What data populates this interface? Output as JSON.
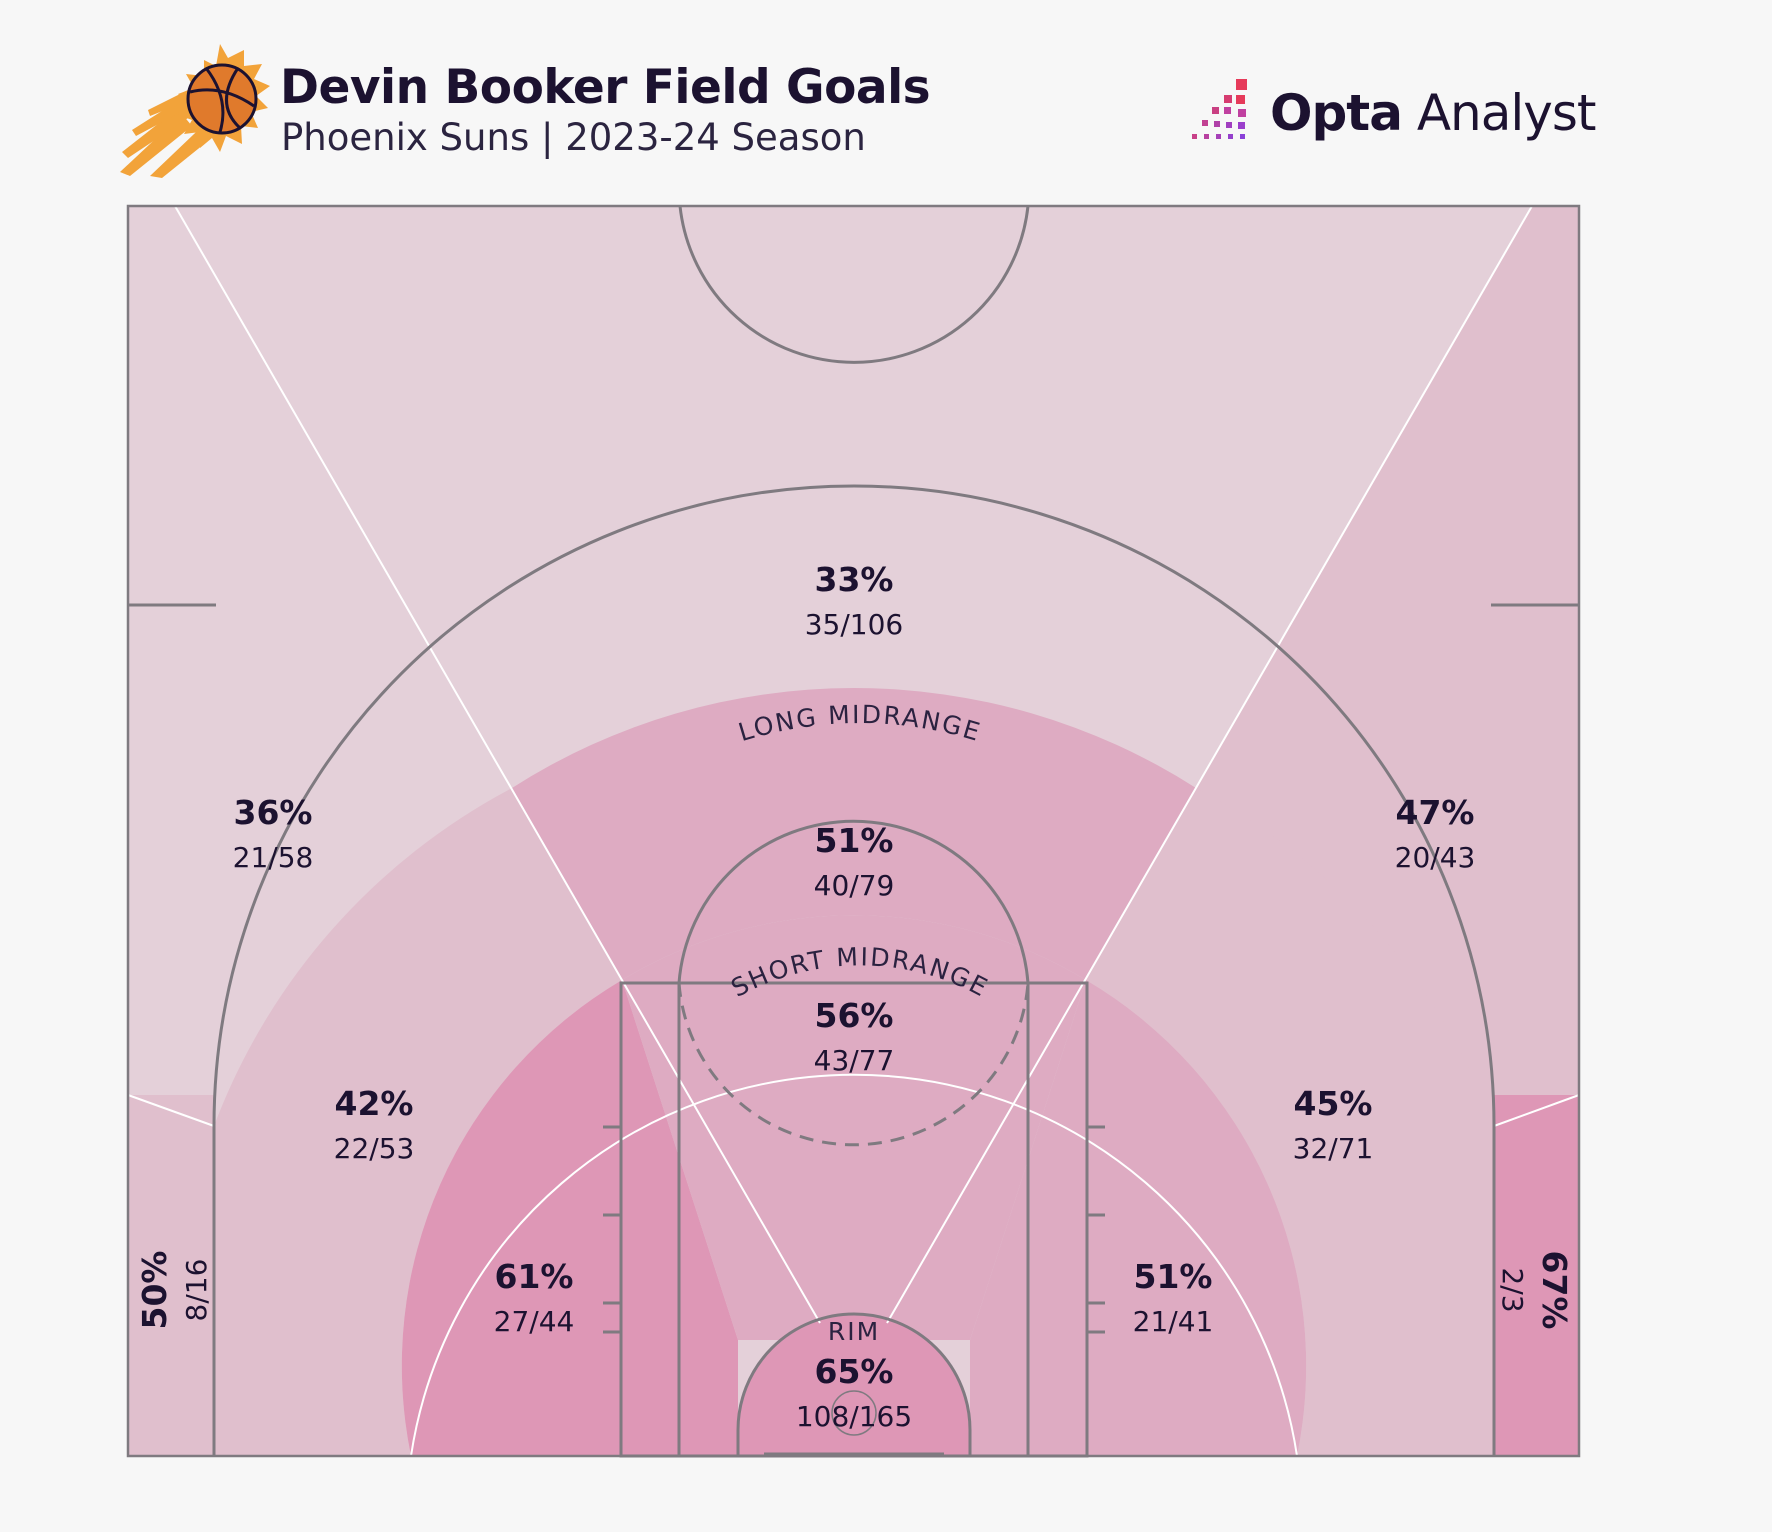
{
  "header": {
    "title": "Devin Booker Field Goals",
    "subtitle": "Phoenix Suns | 2023-24 Season",
    "brand_bold": "Opta",
    "brand_light": "Analyst",
    "team_logo_icon": "suns-basketball-logo-icon",
    "brand_logo_icon": "opta-analyst-logo-icon"
  },
  "colors": {
    "background": "#f7f7f7",
    "court_lines": "#7f7a80",
    "zone_divider": "#ffffff",
    "text": "#1c1230"
  },
  "chart_data": {
    "type": "shot-zone-map",
    "zone_group_labels": {
      "long_midrange": "LONG MIDRANGE",
      "short_midrange": "SHORT MIDRANGE",
      "rim": "RIM"
    },
    "zones": {
      "above_break_center": {
        "pct": "33%",
        "made_attempts": "35/106",
        "made": 35,
        "attempts": 106,
        "color": "#e4d0d9"
      },
      "above_break_left": {
        "pct": "36%",
        "made_attempts": "21/58",
        "made": 21,
        "attempts": 58,
        "color": "#e4d0d9"
      },
      "above_break_right": {
        "pct": "47%",
        "made_attempts": "20/43",
        "made": 20,
        "attempts": 43,
        "color": "#e0bfcd"
      },
      "corner_left": {
        "pct": "50%",
        "made_attempts": "8/16",
        "made": 8,
        "attempts": 16,
        "color": "#e0bfcd"
      },
      "corner_right": {
        "pct": "67%",
        "made_attempts": "2/3",
        "made": 2,
        "attempts": 3,
        "color": "#de97b6"
      },
      "long_mid_left": {
        "pct": "42%",
        "made_attempts": "22/53",
        "made": 22,
        "attempts": 53,
        "color": "#e0bfcd"
      },
      "long_mid_center": {
        "pct": "51%",
        "made_attempts": "40/79",
        "made": 40,
        "attempts": 79,
        "color": "#deabc2"
      },
      "long_mid_right": {
        "pct": "45%",
        "made_attempts": "32/71",
        "made": 32,
        "attempts": 71,
        "color": "#e0bfcd"
      },
      "short_mid_left": {
        "pct": "61%",
        "made_attempts": "27/44",
        "made": 27,
        "attempts": 44,
        "color": "#de97b6"
      },
      "short_mid_center": {
        "pct": "56%",
        "made_attempts": "43/77",
        "made": 43,
        "attempts": 77,
        "color": "#deabc2"
      },
      "short_mid_right": {
        "pct": "51%",
        "made_attempts": "21/41",
        "made": 21,
        "attempts": 41,
        "color": "#deabc2"
      },
      "rim": {
        "pct": "65%",
        "made_attempts": "108/165",
        "made": 108,
        "attempts": 165,
        "color": "#de97b6"
      }
    }
  }
}
